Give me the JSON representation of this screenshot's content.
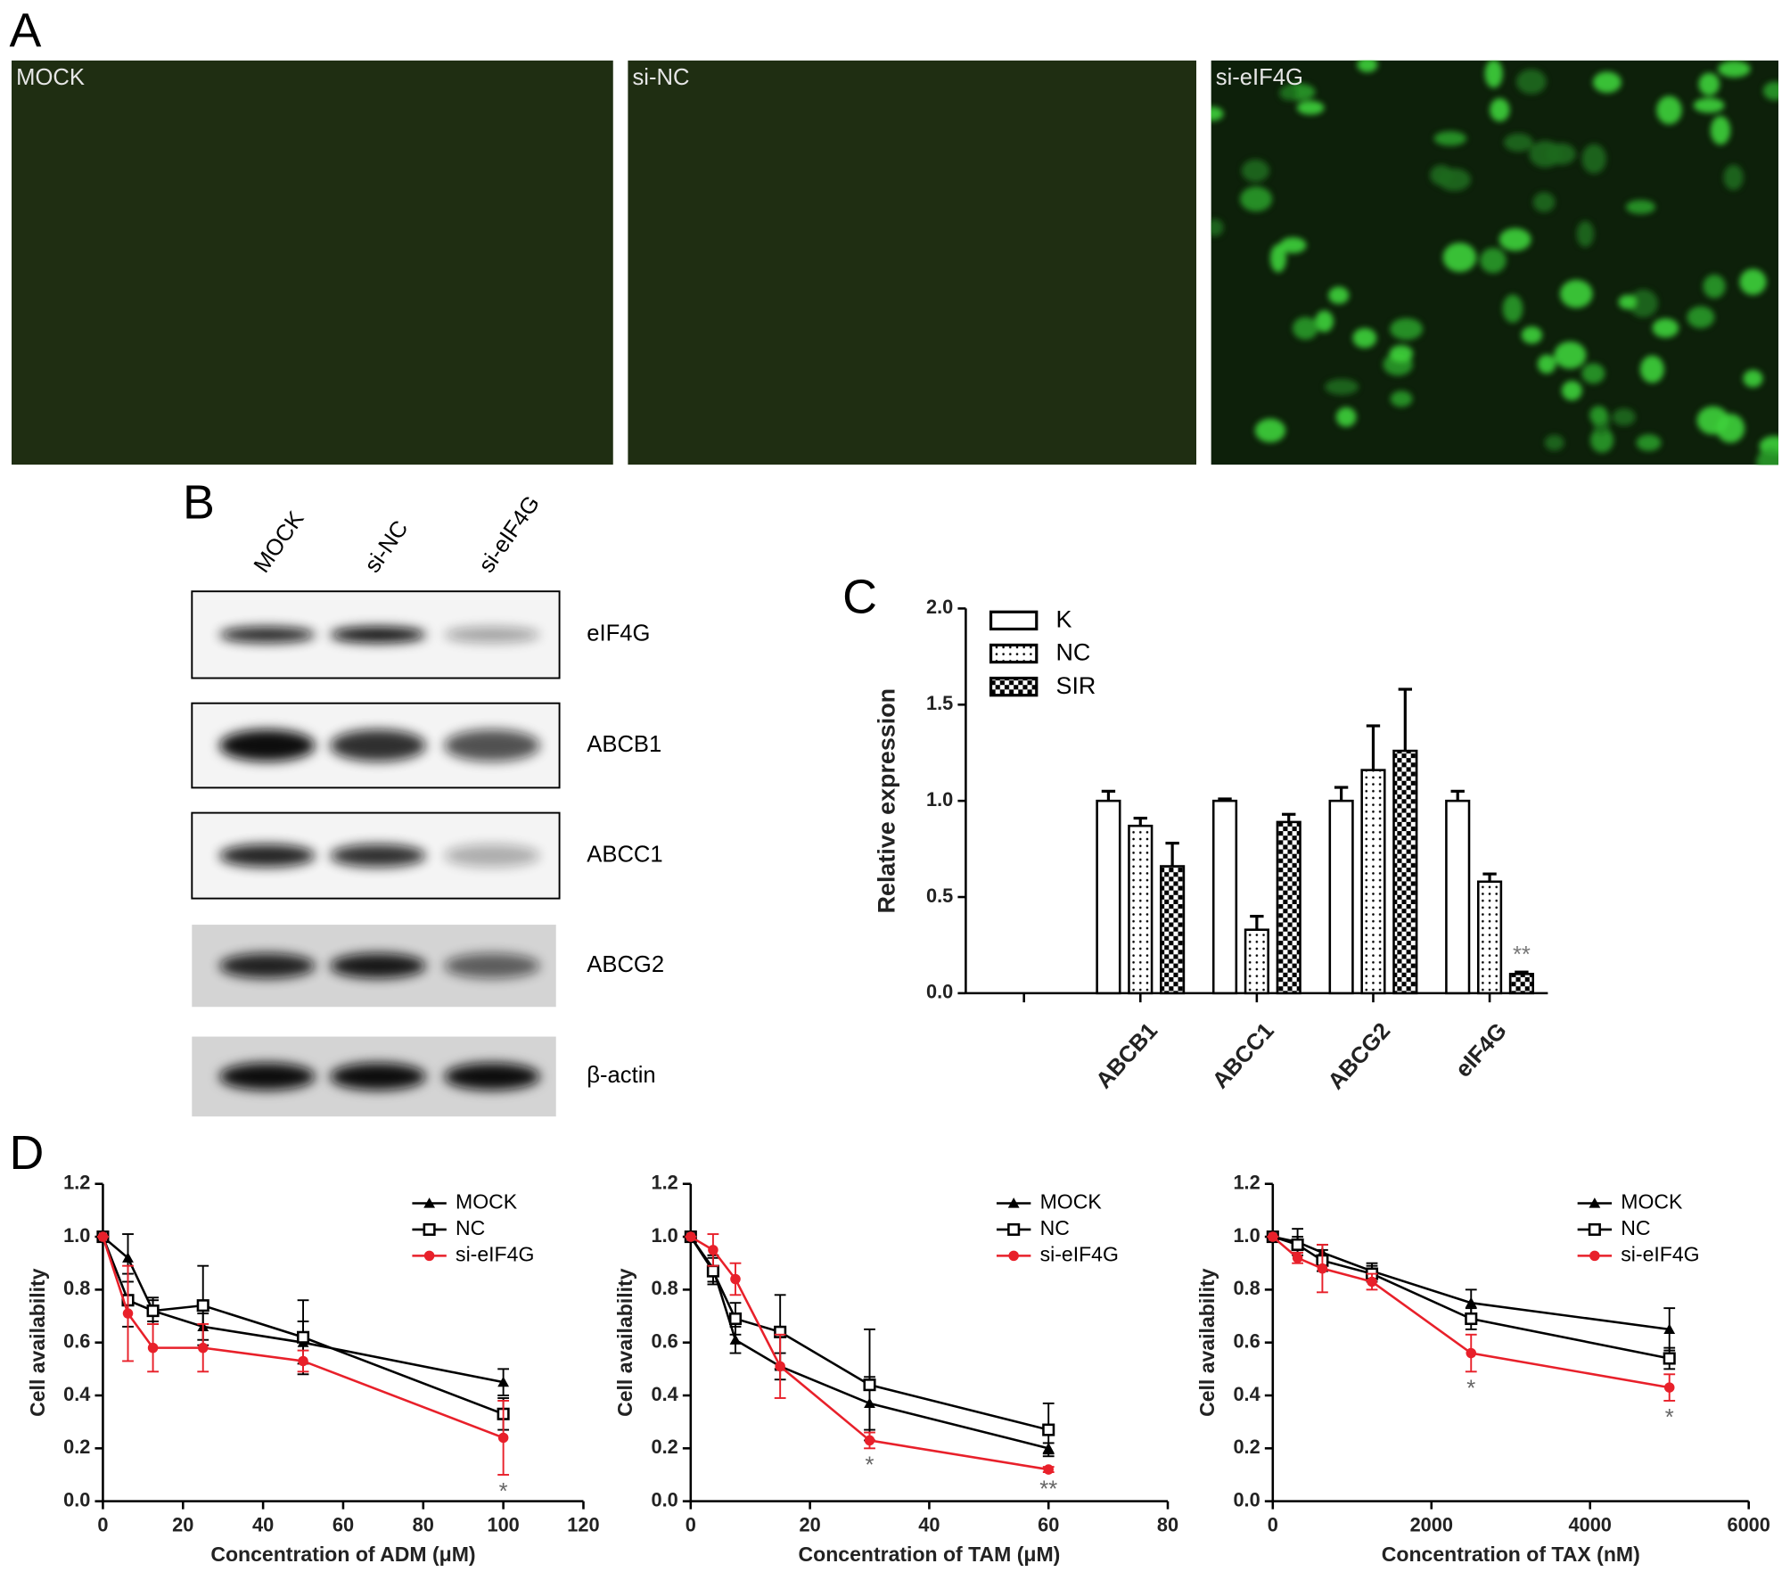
{
  "panel_labels": [
    "A",
    "B",
    "C",
    "D"
  ],
  "images": [
    {
      "label": "MOCK"
    },
    {
      "label": "si-NC"
    },
    {
      "label": "si-eIF4G"
    }
  ],
  "blot": {
    "lanes": [
      "MOCK",
      "si-NC",
      "si-eIF4G"
    ],
    "bands": [
      "eIF4G",
      "ABCB1",
      "ABCC1",
      "ABCG2",
      "β-actin"
    ]
  },
  "chart_data": [
    {
      "type": "bar",
      "ylabel": "Relative expression",
      "categories": [
        null,
        "ABCB1",
        "ABCC1",
        "ABCG2",
        "eIF4G"
      ],
      "series": [
        {
          "name": "K",
          "pattern": "none",
          "values": [
            null,
            1.0,
            1.0,
            1.0,
            1.0
          ],
          "errors": [
            null,
            0.05,
            0.01,
            0.07,
            0.05
          ]
        },
        {
          "name": "NC",
          "pattern": "dots",
          "values": [
            null,
            0.87,
            0.33,
            1.16,
            0.58
          ],
          "errors": [
            null,
            0.04,
            0.07,
            0.23,
            0.04
          ]
        },
        {
          "name": "SIR",
          "pattern": "checker",
          "values": [
            null,
            0.66,
            0.89,
            1.26,
            0.1
          ],
          "errors": [
            null,
            0.12,
            0.04,
            0.32,
            0.01
          ]
        }
      ],
      "ylim": [
        0,
        2
      ],
      "yticks": [
        {
          "value": 0,
          "label": "0.0"
        },
        0.5,
        {
          "value": 1,
          "label": "1.0"
        },
        1.5,
        {
          "value": 2,
          "label": "2.0"
        }
      ],
      "legend": "upper left",
      "annotations": [
        {
          "text": "**",
          "category": "eIF4G",
          "series": "SIR"
        }
      ]
    },
    {
      "type": "line",
      "xlabel": "Concentration of ADM (μM)",
      "ylabel": "Cell availability",
      "x": [
        0,
        6.25,
        12.5,
        25,
        50,
        100
      ],
      "series": [
        {
          "name": "MOCK",
          "color": "#000000",
          "marker": "triangle",
          "values": [
            1.0,
            0.92,
            0.72,
            0.66,
            0.6,
            0.45
          ],
          "errors": [
            0,
            0.09,
            0.04,
            0.05,
            0.08,
            0.05
          ]
        },
        {
          "name": "NC",
          "color": "#000000",
          "marker": "square",
          "values": [
            1.0,
            0.76,
            0.72,
            0.74,
            0.62,
            0.33
          ],
          "errors": [
            0,
            0.1,
            0.05,
            0.15,
            0.14,
            0.06
          ]
        },
        {
          "name": "si-eIF4G",
          "color": "#e8202a",
          "marker": "circle",
          "values": [
            1.0,
            0.71,
            0.58,
            0.58,
            0.53,
            0.24
          ],
          "errors": [
            0,
            0.18,
            0.09,
            0.09,
            0.04,
            0.14
          ]
        }
      ],
      "xlim": [
        0,
        120
      ],
      "xticks": [
        0,
        20,
        40,
        60,
        80,
        100,
        120
      ],
      "ylim": [
        0,
        1.2
      ],
      "yticks": [
        {
          "value": 0,
          "label": "0.0"
        },
        0.2,
        0.4,
        0.6,
        0.8,
        {
          "value": 1,
          "label": "1.0"
        },
        1.2
      ],
      "legend": "upper right",
      "annotations": [
        {
          "text": "*",
          "x": 100
        }
      ]
    },
    {
      "type": "line",
      "xlabel": "Concentration of TAM (μM)",
      "ylabel": "Cell availability",
      "x": [
        0,
        3.75,
        7.5,
        15,
        30,
        60
      ],
      "series": [
        {
          "name": "MOCK",
          "color": "#000000",
          "marker": "triangle",
          "values": [
            1.0,
            0.88,
            0.61,
            0.51,
            0.37,
            0.2
          ],
          "errors": [
            0,
            0.05,
            0.05,
            0.05,
            0.1,
            0.02
          ]
        },
        {
          "name": "NC",
          "color": "#000000",
          "marker": "square",
          "values": [
            1.0,
            0.87,
            0.69,
            0.64,
            0.44,
            0.27
          ],
          "errors": [
            0,
            0.05,
            0.06,
            0.14,
            0.21,
            0.1
          ]
        },
        {
          "name": "si-eIF4G",
          "color": "#e8202a",
          "marker": "circle",
          "values": [
            1.0,
            0.95,
            0.84,
            0.51,
            0.23,
            0.12
          ],
          "errors": [
            0,
            0.06,
            0.06,
            0.12,
            0.03,
            0.01
          ]
        }
      ],
      "xlim": [
        0,
        80
      ],
      "xticks": [
        0,
        20,
        40,
        60,
        80
      ],
      "ylim": [
        0,
        1.2
      ],
      "yticks": [
        {
          "value": 0,
          "label": "0.0"
        },
        0.2,
        0.4,
        0.6,
        0.8,
        {
          "value": 1,
          "label": "1.0"
        },
        1.2
      ],
      "legend": "upper right",
      "annotations": [
        {
          "text": "*",
          "x": 30
        },
        {
          "text": "**",
          "x": 60
        }
      ]
    },
    {
      "type": "line",
      "xlabel": "Concentration of TAX (nM)",
      "ylabel": "Cell availability",
      "x": [
        0,
        312.5,
        625,
        1250,
        2500,
        5000
      ],
      "series": [
        {
          "name": "MOCK",
          "color": "#000000",
          "marker": "triangle",
          "values": [
            1.0,
            0.98,
            0.94,
            0.87,
            0.75,
            0.65
          ],
          "errors": [
            0,
            0.05,
            0.03,
            0.03,
            0.05,
            0.08
          ]
        },
        {
          "name": "NC",
          "color": "#000000",
          "marker": "square",
          "values": [
            1.0,
            0.97,
            0.91,
            0.86,
            0.69,
            0.54
          ],
          "errors": [
            0,
            0.03,
            0.04,
            0.03,
            0.04,
            0.04
          ]
        },
        {
          "name": "si-eIF4G",
          "color": "#e8202a",
          "marker": "circle",
          "values": [
            1.0,
            0.92,
            0.88,
            0.83,
            0.56,
            0.43
          ],
          "errors": [
            0,
            0.02,
            0.09,
            0.03,
            0.07,
            0.05
          ]
        }
      ],
      "xlim": [
        0,
        6000
      ],
      "xticks": [
        0,
        2000,
        4000,
        6000
      ],
      "ylim": [
        0,
        1.2
      ],
      "yticks": [
        {
          "value": 0,
          "label": "0.0"
        },
        0.2,
        0.4,
        0.6,
        0.8,
        {
          "value": 1,
          "label": "1.0"
        },
        1.2
      ],
      "legend": "upper right",
      "annotations": [
        {
          "text": "*",
          "x": 2500
        },
        {
          "text": "*",
          "x": 5000
        }
      ]
    }
  ]
}
